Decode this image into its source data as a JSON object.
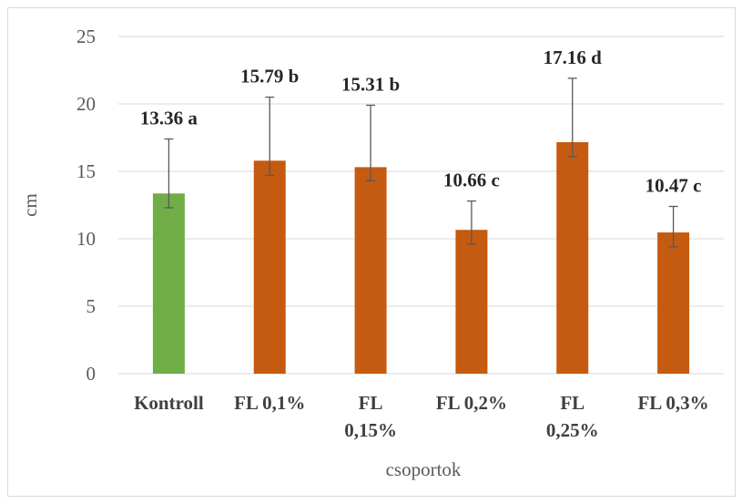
{
  "chart_data": {
    "type": "bar",
    "title": "",
    "xlabel": "csoportok",
    "ylabel": "cm",
    "ylim": [
      0,
      25
    ],
    "yticks": [
      0,
      5,
      10,
      15,
      20,
      25
    ],
    "grid": true,
    "legend": "none",
    "categories": [
      "Kontroll",
      "FL 0,1%",
      "FL 0,15%",
      "FL 0,2%",
      "FL 0,25%",
      "FL 0,3%"
    ],
    "category_lines": [
      [
        "Kontroll"
      ],
      [
        "FL 0,1%"
      ],
      [
        "FL",
        "0,15%"
      ],
      [
        "FL 0,2%"
      ],
      [
        "FL",
        "0,25%"
      ],
      [
        "FL 0,3%"
      ]
    ],
    "values": [
      13.36,
      15.79,
      15.31,
      10.66,
      17.16,
      10.47
    ],
    "error_upper": [
      17.4,
      20.5,
      19.9,
      12.8,
      21.9,
      12.4
    ],
    "error_lower": [
      12.3,
      14.7,
      14.3,
      9.6,
      16.1,
      9.4
    ],
    "data_labels": [
      "13.36 a",
      "15.79 b",
      "15.31 b",
      "10.66 c",
      "17.16 d",
      "10.47 c"
    ],
    "bar_colors": [
      "#70ad47",
      "#c55a11",
      "#c55a11",
      "#c55a11",
      "#c55a11",
      "#c55a11"
    ],
    "gridline_color": "#d9d9d9",
    "errorbar_color": "#595959"
  }
}
